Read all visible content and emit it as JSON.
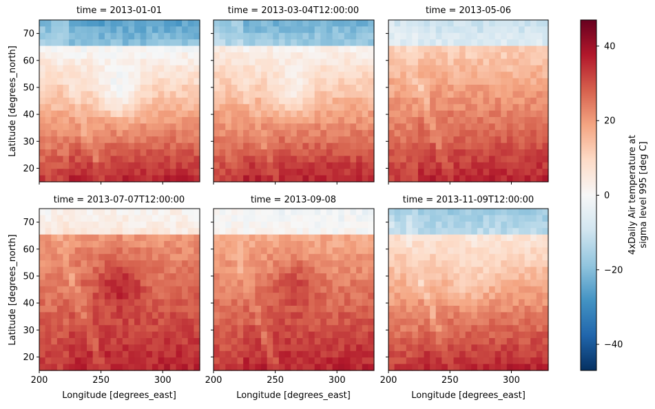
{
  "chart_data": {
    "type": "heatmap",
    "variable_label_line1": "4xDaily Air temperature at",
    "variable_label_line2": "sigma level 995 [deg C]",
    "xlabel": "Longitude [degrees_east]",
    "ylabel": "Latitude [degrees_north]",
    "xlim": [
      200,
      330
    ],
    "ylim": [
      15,
      75
    ],
    "x_ticks": [
      200,
      250,
      300
    ],
    "y_ticks": [
      20,
      30,
      40,
      50,
      60,
      70
    ],
    "colorbar": {
      "colormap": "RdBu_r",
      "range": [
        -47,
        47
      ],
      "ticks": [
        -40,
        -20,
        0,
        20,
        40
      ],
      "tick_labels": [
        "−40",
        "−20",
        "0",
        "20",
        "40"
      ]
    },
    "grid": {
      "nx": 27,
      "ny": 25,
      "lon_start": 200,
      "lon_step": 5,
      "lat_start": 75,
      "lat_step": -2.5
    },
    "panels": [
      {
        "title": "time = 2013-01-01",
        "season": 0.0
      },
      {
        "title": "time = 2013-03-04T12:00:00",
        "season": 0.12
      },
      {
        "title": "time = 2013-05-06",
        "season": 0.55
      },
      {
        "title": "time = 2013-07-07T12:00:00",
        "season": 1.0
      },
      {
        "title": "time = 2013-09-08",
        "season": 0.85
      },
      {
        "title": "time = 2013-11-09T12:00:00",
        "season": 0.3
      }
    ]
  }
}
